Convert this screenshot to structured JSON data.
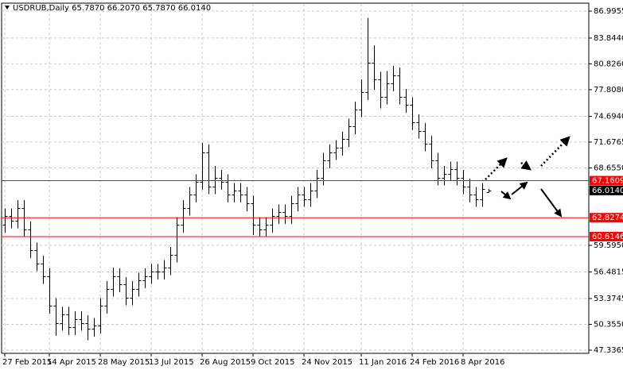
{
  "chart_data": {
    "type": "ohlc",
    "title": "USDRUB,Daily  65.7870 66.2070 65.7870 66.0140",
    "categories": [
      "27 Feb 2015",
      null,
      null,
      null,
      null,
      null,
      null,
      "14 Apr 2015",
      null,
      null,
      null,
      null,
      null,
      null,
      null,
      "28 May 2015",
      null,
      null,
      null,
      null,
      null,
      null,
      null,
      "13 Jul 2015",
      null,
      null,
      null,
      null,
      null,
      null,
      null,
      "26 Aug 2015",
      null,
      null,
      null,
      null,
      null,
      null,
      null,
      "9 Oct 2015",
      null,
      null,
      null,
      null,
      null,
      null,
      null,
      "24 Nov 2015",
      null,
      null,
      null,
      null,
      null,
      null,
      null,
      null,
      "11 Jan 2016",
      null,
      null,
      null,
      null,
      null,
      null,
      null,
      "24 Feb 2016",
      null,
      null,
      null,
      null,
      null,
      null,
      null,
      "8 Apr 2016",
      null,
      null,
      null,
      null
    ],
    "open": [
      62.0,
      63.0,
      62.5,
      64.0,
      61.5,
      59.0,
      57.5,
      56.0,
      52.5,
      50.5,
      51.5,
      50.0,
      51.0,
      50.5,
      49.8,
      50.2,
      52.5,
      54.5,
      56.0,
      55.0,
      53.5,
      54.5,
      55.5,
      56.0,
      56.5,
      56.5,
      57.0,
      58.5,
      62.0,
      64.0,
      65.5,
      67.0,
      70.5,
      66.5,
      67.5,
      67.0,
      65.5,
      66.0,
      65.5,
      64.5,
      62.0,
      61.5,
      62.0,
      63.0,
      63.5,
      63.0,
      64.5,
      65.5,
      65.0,
      66.0,
      67.5,
      69.5,
      70.5,
      71.0,
      72.0,
      73.5,
      75.5,
      77.5,
      81.0,
      79.0,
      77.0,
      78.5,
      79.5,
      77.0,
      76.0,
      74.0,
      73.0,
      71.5,
      69.5,
      67.5,
      68.0,
      68.5,
      67.5,
      66.5,
      65.5,
      65.0,
      65.787
    ],
    "high": [
      63.9,
      63.9,
      64.9,
      64.9,
      62.4,
      59.9,
      58.4,
      56.9,
      53.4,
      52.4,
      52.4,
      51.9,
      51.9,
      51.4,
      51.1,
      53.4,
      55.4,
      57.0,
      56.9,
      55.9,
      55.4,
      56.4,
      56.9,
      57.4,
      57.4,
      57.9,
      59.4,
      62.9,
      64.9,
      66.4,
      67.9,
      71.6,
      71.4,
      68.9,
      68.4,
      67.9,
      66.9,
      66.9,
      66.4,
      65.4,
      62.9,
      62.9,
      63.9,
      64.4,
      64.4,
      65.4,
      66.4,
      66.4,
      66.9,
      68.4,
      70.4,
      71.4,
      71.9,
      72.9,
      74.4,
      76.4,
      79.0,
      86.2,
      83.0,
      79.9,
      80.0,
      80.6,
      80.4,
      77.9,
      76.9,
      74.9,
      73.9,
      72.4,
      70.4,
      68.9,
      69.4,
      69.4,
      68.4,
      67.4,
      66.4,
      66.9,
      66.207
    ],
    "low": [
      61.1,
      61.6,
      61.6,
      60.6,
      58.1,
      56.6,
      55.1,
      51.6,
      49.0,
      49.6,
      49.1,
      49.1,
      49.6,
      48.5,
      48.9,
      49.3,
      51.6,
      53.6,
      54.1,
      52.6,
      52.6,
      53.6,
      54.6,
      55.1,
      55.6,
      55.6,
      56.1,
      57.6,
      61.1,
      63.1,
      64.6,
      66.1,
      65.6,
      65.6,
      66.1,
      64.6,
      64.6,
      64.6,
      63.6,
      60.8,
      60.6,
      60.6,
      61.1,
      62.1,
      62.1,
      62.1,
      63.6,
      64.1,
      64.1,
      65.1,
      66.6,
      68.6,
      69.6,
      70.1,
      71.1,
      72.6,
      74.6,
      76.6,
      77.8,
      75.6,
      76.1,
      77.6,
      76.1,
      75.1,
      73.1,
      72.1,
      70.6,
      68.6,
      66.6,
      66.6,
      67.1,
      66.6,
      65.6,
      64.6,
      64.1,
      64.1,
      65.787
    ],
    "close": [
      63.0,
      62.5,
      64.0,
      61.5,
      59.0,
      57.5,
      56.0,
      52.5,
      50.5,
      51.5,
      50.0,
      51.0,
      50.5,
      49.8,
      50.2,
      52.5,
      54.5,
      56.0,
      55.0,
      53.5,
      54.5,
      55.5,
      56.0,
      56.5,
      56.5,
      57.0,
      58.5,
      62.0,
      64.0,
      65.5,
      67.0,
      70.5,
      66.5,
      67.5,
      67.0,
      65.5,
      66.0,
      65.5,
      64.5,
      62.0,
      61.5,
      62.0,
      63.0,
      63.5,
      63.0,
      64.5,
      65.5,
      65.0,
      66.0,
      67.5,
      69.5,
      70.5,
      71.0,
      72.0,
      73.5,
      75.5,
      77.5,
      81.0,
      79.0,
      77.0,
      78.5,
      79.5,
      77.0,
      76.0,
      74.0,
      73.0,
      71.5,
      69.5,
      67.5,
      68.0,
      68.5,
      67.5,
      66.5,
      65.5,
      65.0,
      66.2,
      66.014
    ],
    "color": "#000000",
    "ylim": [
      46.965,
      87.831
    ],
    "yticks": [
      86.9955,
      {
        "value": 83.844,
        "label": "83.8440"
      },
      {
        "value": 80.826,
        "label": "80.8260"
      },
      {
        "value": 77.808,
        "label": "77.8080"
      },
      {
        "value": 74.694,
        "label": "74.6940"
      },
      71.6765,
      {
        "value": 68.655,
        "label": "68.6550"
      },
      {
        "value": 59.595,
        "label": "59.5950"
      },
      56.4815,
      53.3745,
      {
        "value": 50.355,
        "label": "50.3550"
      },
      47.3365
    ],
    "levels": [
      67.1609,
      62.8274,
      60.6146
    ],
    "level_color": "#ff0000",
    "last_price": {
      "value": 66.014,
      "label": "66.0140"
    },
    "grid": true
  }
}
